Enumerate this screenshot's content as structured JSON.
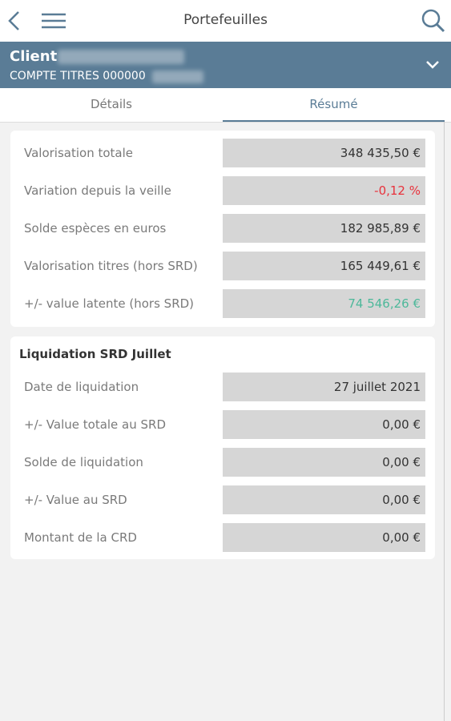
{
  "header": {
    "title": "Portefeuilles"
  },
  "client": {
    "label": "Client",
    "account": "COMPTE TITRES 000000"
  },
  "tabs": [
    "Détails",
    "Résumé"
  ],
  "summary": {
    "rows": [
      {
        "label": "Valorisation totale",
        "value": "348 435,50 €"
      },
      {
        "label": "Variation depuis la veille",
        "value": "-0,12 %",
        "color": "#e8323c"
      },
      {
        "label": "Solde espèces en euros",
        "value": "182 985,89 €"
      },
      {
        "label": "Valorisation titres (hors SRD)",
        "value": "165 449,61 €"
      },
      {
        "label": "+/- value latente (hors SRD)",
        "value": "74 546,26 €",
        "color": "#4db89a"
      }
    ]
  },
  "liquidation": {
    "title": "Liquidation SRD Juillet",
    "rows": [
      {
        "label": "Date de liquidation",
        "value": "27 juillet 2021"
      },
      {
        "label": "+/- Value totale au SRD",
        "value": "0,00 €"
      },
      {
        "label": "Solde de liquidation",
        "value": "0,00 €"
      },
      {
        "label": "+/- Value au SRD",
        "value": "0,00 €"
      },
      {
        "label": "Montant de la CRD",
        "value": "0,00 €"
      }
    ]
  }
}
